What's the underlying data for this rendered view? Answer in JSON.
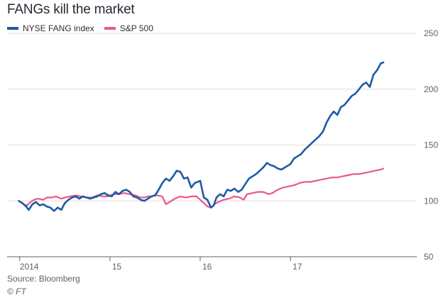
{
  "chart_data": {
    "type": "line",
    "title": "FANGs kill the market",
    "xlabel": "",
    "ylabel": "",
    "ylim": [
      50,
      250
    ],
    "yticks": [
      "250",
      "200",
      "150",
      "100",
      "50"
    ],
    "yticks_values": [
      250,
      200,
      150,
      100,
      50
    ],
    "xticks": [
      {
        "label": "2014",
        "value": 2014.0
      },
      {
        "label": "15",
        "value": 2015.0
      },
      {
        "label": "16",
        "value": 2016.0
      },
      {
        "label": "17",
        "value": 2017.0
      }
    ],
    "grid": true,
    "legend_placement": "top-left",
    "series": [
      {
        "name": "NYSE FANG index",
        "color": "#1d5ba4",
        "points": [
          [
            2013.99,
            100
          ],
          [
            2014.03,
            98
          ],
          [
            2014.07,
            95
          ],
          [
            2014.1,
            92
          ],
          [
            2014.14,
            97
          ],
          [
            2014.18,
            99
          ],
          [
            2014.22,
            96
          ],
          [
            2014.26,
            97
          ],
          [
            2014.3,
            95
          ],
          [
            2014.34,
            94
          ],
          [
            2014.38,
            91
          ],
          [
            2014.42,
            94
          ],
          [
            2014.46,
            92
          ],
          [
            2014.5,
            98
          ],
          [
            2014.54,
            101
          ],
          [
            2014.58,
            103
          ],
          [
            2014.62,
            104
          ],
          [
            2014.66,
            102
          ],
          [
            2014.7,
            104
          ],
          [
            2014.74,
            103
          ],
          [
            2014.78,
            102
          ],
          [
            2014.82,
            103
          ],
          [
            2014.86,
            104
          ],
          [
            2014.9,
            106
          ],
          [
            2014.94,
            107
          ],
          [
            2014.98,
            105
          ],
          [
            2015.02,
            104
          ],
          [
            2015.06,
            108
          ],
          [
            2015.1,
            106
          ],
          [
            2015.14,
            109
          ],
          [
            2015.18,
            110
          ],
          [
            2015.22,
            108
          ],
          [
            2015.26,
            104
          ],
          [
            2015.3,
            103
          ],
          [
            2015.34,
            101
          ],
          [
            2015.38,
            100
          ],
          [
            2015.42,
            102
          ],
          [
            2015.46,
            104
          ],
          [
            2015.5,
            105
          ],
          [
            2015.54,
            110
          ],
          [
            2015.58,
            116
          ],
          [
            2015.62,
            120
          ],
          [
            2015.66,
            118
          ],
          [
            2015.7,
            122
          ],
          [
            2015.74,
            127
          ],
          [
            2015.78,
            126
          ],
          [
            2015.82,
            120
          ],
          [
            2015.86,
            121
          ],
          [
            2015.9,
            112
          ],
          [
            2015.94,
            116
          ],
          [
            2016.0,
            118
          ],
          [
            2016.04,
            103
          ],
          [
            2016.08,
            101
          ],
          [
            2016.12,
            94
          ],
          [
            2016.15,
            96
          ],
          [
            2016.18,
            103
          ],
          [
            2016.22,
            106
          ],
          [
            2016.26,
            104
          ],
          [
            2016.3,
            110
          ],
          [
            2016.34,
            109
          ],
          [
            2016.38,
            111
          ],
          [
            2016.42,
            108
          ],
          [
            2016.46,
            110
          ],
          [
            2016.5,
            115
          ],
          [
            2016.54,
            120
          ],
          [
            2016.58,
            122
          ],
          [
            2016.62,
            124
          ],
          [
            2016.66,
            127
          ],
          [
            2016.7,
            130
          ],
          [
            2016.74,
            134
          ],
          [
            2016.78,
            132
          ],
          [
            2016.82,
            131
          ],
          [
            2016.86,
            129
          ],
          [
            2016.9,
            128
          ],
          [
            2016.94,
            130
          ],
          [
            2017.0,
            133
          ],
          [
            2017.04,
            138
          ],
          [
            2017.08,
            140
          ],
          [
            2017.12,
            142
          ],
          [
            2017.16,
            146
          ],
          [
            2017.2,
            149
          ],
          [
            2017.24,
            152
          ],
          [
            2017.28,
            155
          ],
          [
            2017.32,
            158
          ],
          [
            2017.36,
            162
          ],
          [
            2017.4,
            170
          ],
          [
            2017.44,
            176
          ],
          [
            2017.48,
            180
          ],
          [
            2017.52,
            177
          ],
          [
            2017.56,
            184
          ],
          [
            2017.6,
            186
          ],
          [
            2017.64,
            190
          ],
          [
            2017.68,
            194
          ],
          [
            2017.72,
            196
          ],
          [
            2017.76,
            200
          ],
          [
            2017.8,
            204
          ],
          [
            2017.84,
            206
          ],
          [
            2017.88,
            202
          ],
          [
            2017.92,
            213
          ],
          [
            2017.96,
            217
          ],
          [
            2018.0,
            223
          ],
          [
            2018.03,
            224
          ]
        ]
      },
      {
        "name": "S&P 500",
        "color": "#e8578e",
        "points": [
          [
            2013.99,
            100
          ],
          [
            2014.04,
            97
          ],
          [
            2014.08,
            96
          ],
          [
            2014.12,
            99
          ],
          [
            2014.16,
            101
          ],
          [
            2014.2,
            102
          ],
          [
            2014.26,
            101
          ],
          [
            2014.3,
            103
          ],
          [
            2014.36,
            103
          ],
          [
            2014.4,
            104
          ],
          [
            2014.46,
            102
          ],
          [
            2014.5,
            103
          ],
          [
            2014.56,
            104
          ],
          [
            2014.62,
            105
          ],
          [
            2014.68,
            104
          ],
          [
            2014.74,
            103
          ],
          [
            2014.8,
            103
          ],
          [
            2014.86,
            105
          ],
          [
            2014.92,
            104
          ],
          [
            2014.98,
            104
          ],
          [
            2015.04,
            106
          ],
          [
            2015.1,
            106
          ],
          [
            2015.16,
            107
          ],
          [
            2015.22,
            106
          ],
          [
            2015.28,
            105
          ],
          [
            2015.34,
            103
          ],
          [
            2015.38,
            103
          ],
          [
            2015.42,
            104
          ],
          [
            2015.46,
            104
          ],
          [
            2015.52,
            105
          ],
          [
            2015.58,
            104
          ],
          [
            2015.62,
            97
          ],
          [
            2015.66,
            99
          ],
          [
            2015.72,
            102
          ],
          [
            2015.78,
            104
          ],
          [
            2015.84,
            103
          ],
          [
            2015.9,
            104
          ],
          [
            2015.96,
            104
          ],
          [
            2016.0,
            101
          ],
          [
            2016.04,
            98
          ],
          [
            2016.08,
            95
          ],
          [
            2016.12,
            94
          ],
          [
            2016.16,
            97
          ],
          [
            2016.2,
            99
          ],
          [
            2016.26,
            101
          ],
          [
            2016.32,
            102
          ],
          [
            2016.38,
            104
          ],
          [
            2016.44,
            103
          ],
          [
            2016.48,
            101
          ],
          [
            2016.52,
            106
          ],
          [
            2016.58,
            107
          ],
          [
            2016.64,
            108
          ],
          [
            2016.7,
            108
          ],
          [
            2016.76,
            106
          ],
          [
            2016.8,
            107
          ],
          [
            2016.86,
            110
          ],
          [
            2016.92,
            112
          ],
          [
            2016.98,
            113
          ],
          [
            2017.04,
            114
          ],
          [
            2017.1,
            116
          ],
          [
            2017.16,
            117
          ],
          [
            2017.22,
            117
          ],
          [
            2017.28,
            118
          ],
          [
            2017.34,
            119
          ],
          [
            2017.4,
            120
          ],
          [
            2017.46,
            121
          ],
          [
            2017.52,
            121
          ],
          [
            2017.58,
            122
          ],
          [
            2017.64,
            123
          ],
          [
            2017.7,
            124
          ],
          [
            2017.76,
            124
          ],
          [
            2017.82,
            125
          ],
          [
            2017.88,
            126
          ],
          [
            2017.94,
            127
          ],
          [
            2018.0,
            128
          ],
          [
            2018.03,
            129
          ]
        ]
      }
    ]
  },
  "footer": {
    "source": "Source: Bloomberg",
    "copyright": "© FT"
  }
}
